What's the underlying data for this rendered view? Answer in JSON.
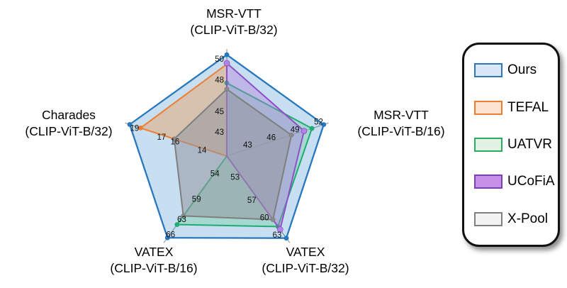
{
  "figure": {
    "background": "#ffffff"
  },
  "chart_data": {
    "type": "radar",
    "description": "Text-video retrieval R@1 comparison radar (pentagon), 5 benchmarks, 5 methods. Methods without a published result on an axis collapse to the center.",
    "axes": [
      {
        "label_line1": "MSR-VTT",
        "label_line2": "(CLIP-ViT-B/32)",
        "ticks": [
          43,
          45,
          48,
          50
        ],
        "min": 40.5,
        "max": 50.35
      },
      {
        "label_line1": "MSR-VTT",
        "label_line2": "(CLIP-ViT-B/16)",
        "ticks": [
          43,
          46,
          49,
          52
        ],
        "min": 40.0,
        "max": 52.4
      },
      {
        "label_line1": "VATEX",
        "label_line2": "(CLIP-ViT-B/32)",
        "ticks": [
          53,
          57,
          60,
          63
        ],
        "min": 49.0,
        "max": 63.4
      },
      {
        "label_line1": "VATEX",
        "label_line2": "(CLIP-ViT-B/16)",
        "ticks": [
          54,
          59,
          63,
          66
        ],
        "min": 50.0,
        "max": 66.4
      },
      {
        "label_line1": "Charades",
        "label_line2": "(CLIP-ViT-B/32)",
        "ticks": [
          14,
          16,
          17,
          19
        ],
        "min": 12.0,
        "max": 19.25
      }
    ],
    "series": [
      {
        "name": "Ours",
        "color": "#2878BE",
        "marker": "#2878BE",
        "fill": "rgba(155,194,230,0.55)",
        "line_width": 2.3,
        "values": [
          50.2,
          52.3,
          63.2,
          66.1,
          19.2
        ]
      },
      {
        "name": "TEFAL",
        "color": "#ED7D31",
        "marker": "#ED7D31",
        "fill": "rgba(230,160,95,0.45)",
        "line_width": 2.0,
        "values": [
          49.3,
          null,
          null,
          null,
          18.4
        ]
      },
      {
        "name": "UATVR",
        "color": "#1FAB72",
        "marker": "#1FAB72",
        "fill": "rgba(130,210,175,0.50)",
        "line_width": 2.0,
        "values": [
          47.5,
          50.8,
          61.2,
          63.5,
          null
        ]
      },
      {
        "name": "UCoFiA",
        "color": "#8F4FC8",
        "marker": "#B285E3",
        "fill": "rgba(175,125,220,0.40)",
        "line_width": 2.0,
        "values": [
          49.4,
          49.8,
          61.7,
          null,
          null
        ]
      },
      {
        "name": "X-Pool",
        "color": "#7F7F7F",
        "marker": "#8A8A8A",
        "fill": "rgba(150,152,160,0.55)",
        "line_width": 2.0,
        "values": [
          46.9,
          48.2,
          60.0,
          61.8,
          15.9
        ]
      }
    ],
    "legend_position": "right"
  },
  "legend": {
    "items": [
      {
        "label": "Ours",
        "border": "#2E75B6",
        "fill": "#D9E7F7"
      },
      {
        "label": "TEFAL",
        "border": "#ED7D31",
        "fill": "#FBE3D1"
      },
      {
        "label": "UATVR",
        "border": "#27AE60",
        "fill": "#E2F3E6"
      },
      {
        "label": "UCoFiA",
        "border": "#7D3FB8",
        "fill": "#C690E8"
      },
      {
        "label": "X-Pool",
        "border": "#808080",
        "fill": "#F2F2F2"
      }
    ]
  }
}
